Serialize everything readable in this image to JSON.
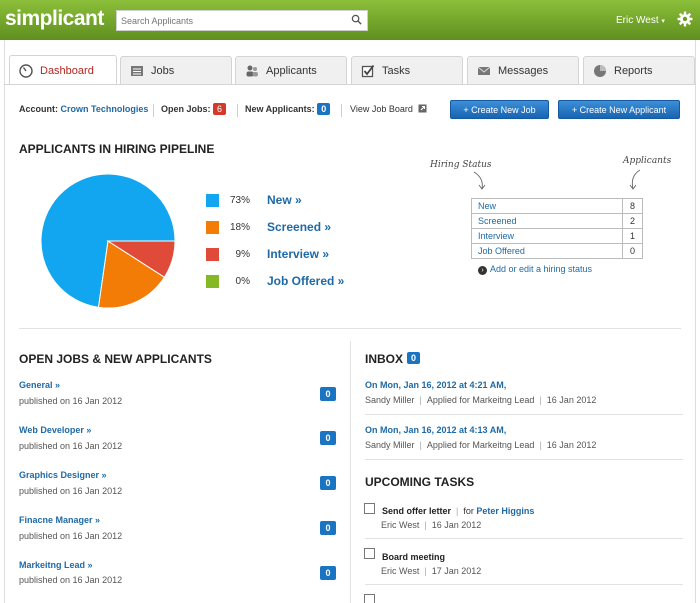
{
  "header": {
    "logo": "simplicant",
    "search_placeholder": "Search Applicants",
    "user": "Eric West",
    "user_caret": "▾"
  },
  "tabs": [
    {
      "label": "Dashboard",
      "icon": "dashboard-gauge-icon",
      "active": true
    },
    {
      "label": "Jobs",
      "icon": "jobs-list-icon"
    },
    {
      "label": "Applicants",
      "icon": "applicants-people-icon"
    },
    {
      "label": "Tasks",
      "icon": "tasks-checkbox-icon"
    },
    {
      "label": "Messages",
      "icon": "messages-envelope-icon"
    },
    {
      "label": "Reports",
      "icon": "reports-pie-icon"
    }
  ],
  "account_bar": {
    "account_label": "Account:",
    "account_name": "Crown Technologies",
    "open_jobs_label": "Open Jobs:",
    "open_jobs_count": "6",
    "new_applicants_label": "New Applicants:",
    "new_applicants_count": "0",
    "view_job_board": "View Job Board",
    "create_job_label": "+   Create New Job",
    "create_applicant_label": "+   Create New Applicant"
  },
  "pipeline": {
    "title": "APPLICANTS IN HIRING PIPELINE",
    "legend": [
      {
        "pct": "73%",
        "label": "New »",
        "color": "#11a6ef"
      },
      {
        "pct": "18%",
        "label": "Screened »",
        "color": "#f37c07"
      },
      {
        "pct": "9%",
        "label": "Interview »",
        "color": "#df4b38"
      },
      {
        "pct": "0%",
        "label": "Job Offered »",
        "color": "#84b925"
      }
    ],
    "hiring_status_note": "Hiring Status",
    "applicants_note": "Applicants",
    "status_table": [
      {
        "status": "New",
        "count": "8"
      },
      {
        "status": "Screened",
        "count": "2"
      },
      {
        "status": "Interview",
        "count": "1"
      },
      {
        "status": "Job Offered",
        "count": "0"
      }
    ],
    "add_status_link": "Add or edit a hiring status"
  },
  "chart_data": {
    "type": "pie",
    "categories": [
      "New",
      "Screened",
      "Interview",
      "Job Offered"
    ],
    "values": [
      8,
      2,
      1,
      0
    ],
    "colors": [
      "#11a6ef",
      "#f37c07",
      "#df4b38",
      "#84b925"
    ]
  },
  "open_jobs": {
    "title": "OPEN JOBS & NEW APPLICANTS",
    "items": [
      {
        "title": "General »",
        "sub": "published on 16 Jan 2012",
        "count": "0"
      },
      {
        "title": "Web Developer »",
        "sub": "published on 16 Jan 2012",
        "count": "0"
      },
      {
        "title": "Graphics Designer »",
        "sub": "published on 16 Jan 2012",
        "count": "0"
      },
      {
        "title": "Finacne Manager »",
        "sub": "published on 16 Jan 2012",
        "count": "0"
      },
      {
        "title": "Markeitng Lead »",
        "sub": "published on 16 Jan 2012",
        "count": "0"
      }
    ]
  },
  "inbox": {
    "title": "INBOX",
    "count": "0",
    "messages": [
      {
        "when": "On Mon, Jan 16, 2012 at 4:21 AM,",
        "from": "Sandy Miller",
        "subject": "Applied for Markeitng Lead",
        "date": "16 Jan 2012"
      },
      {
        "when": "On Mon, Jan 16, 2012 at 4:13 AM,",
        "from": "Sandy Miller",
        "subject": "Applied for Markeitng Lead",
        "date": "16 Jan 2012"
      }
    ]
  },
  "tasks": {
    "title": "UPCOMING TASKS",
    "items": [
      {
        "title": "Send offer letter",
        "for_label": "for",
        "for_name": "Peter Higgins",
        "owner": "Eric West",
        "date": "16 Jan 2012"
      },
      {
        "title": "Board meeting",
        "owner": "Eric West",
        "date": "17 Jan 2012"
      }
    ]
  }
}
